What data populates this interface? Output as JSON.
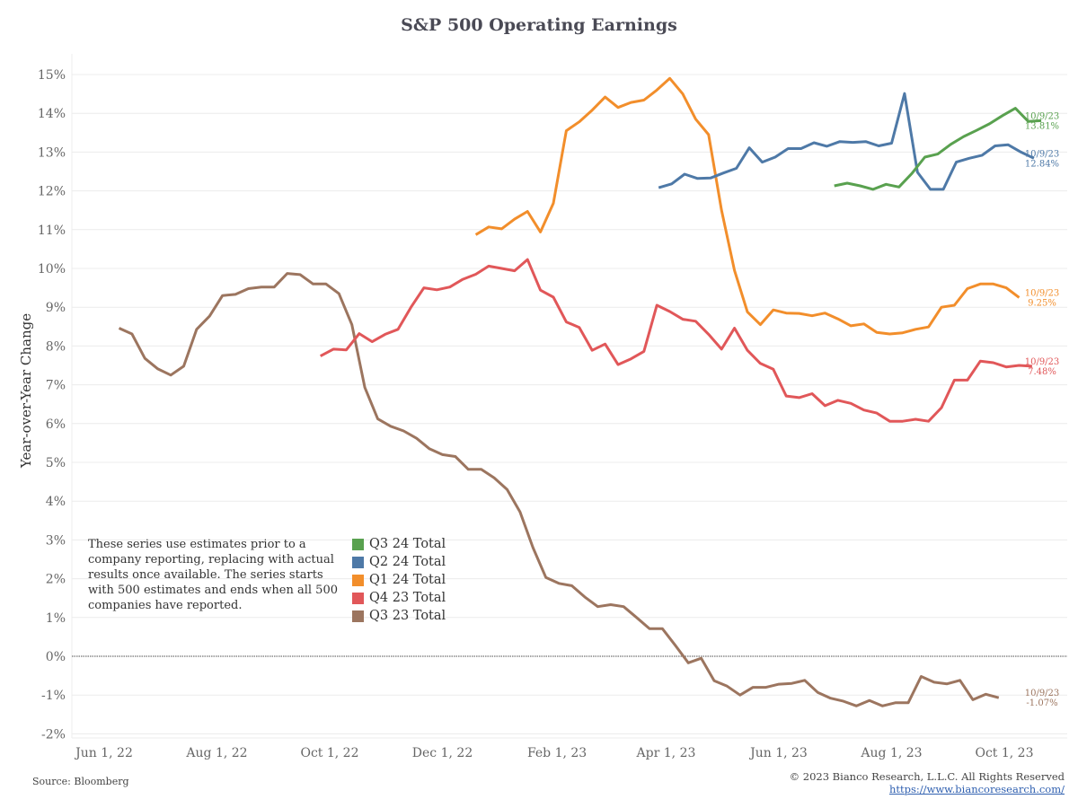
{
  "chart_data": {
    "type": "line",
    "title": "S&P 500 Operating Earnings",
    "xlabel": "",
    "ylabel": "Year-over-Year Change",
    "ylim": [
      -2.2,
      15.6
    ],
    "yticks": [
      15,
      14,
      13,
      12,
      11,
      10,
      9,
      8,
      7,
      6,
      5,
      4,
      3,
      2,
      1,
      0,
      -1,
      -2
    ],
    "ytick_labels": [
      "15%",
      "14%",
      "13%",
      "12%",
      "11%",
      "10%",
      "9%",
      "8%",
      "7%",
      "6%",
      "5%",
      "4%",
      "3%",
      "2%",
      "1%",
      "0%",
      "-1%",
      "-2%"
    ],
    "xlim": [
      "2022-05-20",
      "2023-10-31"
    ],
    "xticks": [
      "2022-06-01",
      "2022-08-01",
      "2022-10-01",
      "2022-12-01",
      "2023-02-01",
      "2023-04-01",
      "2023-06-01",
      "2023-08-01",
      "2023-10-01"
    ],
    "xtick_labels": [
      "Jun 1, 22",
      "Aug 1, 22",
      "Oct 1, 22",
      "Dec 1, 22",
      "Feb 1, 23",
      "Apr 1, 23",
      "Jun 1, 23",
      "Aug 1, 23",
      "Oct 1, 23"
    ],
    "grid": true,
    "zero_line": true,
    "legend_position": "bottom-left",
    "frequency": "weekly",
    "series": [
      {
        "name": "Q3 24 Total",
        "color": "#59a14f",
        "start": "2023-07-01",
        "values": [
          12.13,
          12.2,
          12.13,
          12.04,
          12.17,
          12.1,
          12.45,
          12.87,
          12.95,
          13.2,
          13.4,
          13.56,
          13.73,
          13.94,
          14.13,
          13.79,
          13.81
        ],
        "end_label": "10/9/23",
        "end_value_label": "13.81%"
      },
      {
        "name": "Q2 24 Total",
        "color": "#4e79a7",
        "start": "2023-03-28",
        "values": [
          12.08,
          12.18,
          12.43,
          12.32,
          12.33,
          12.46,
          12.58,
          13.11,
          12.74,
          12.87,
          13.09,
          13.09,
          13.24,
          13.15,
          13.27,
          13.25,
          13.27,
          13.16,
          13.23,
          14.51,
          12.48,
          12.04,
          12.04,
          12.74,
          12.84,
          12.92,
          13.16,
          13.19,
          13.0,
          12.84
        ],
        "end_label": "10/9/23",
        "end_value_label": "12.84%"
      },
      {
        "name": "Q1 24 Total",
        "color": "#f28e2b",
        "start": "2022-12-19",
        "values": [
          10.87,
          11.07,
          11.02,
          11.27,
          11.47,
          10.94,
          11.68,
          13.55,
          13.78,
          14.08,
          14.42,
          14.15,
          14.28,
          14.34,
          14.6,
          14.9,
          14.5,
          13.85,
          13.45,
          11.5,
          9.95,
          8.88,
          8.55,
          8.93,
          8.85,
          8.84,
          8.78,
          8.85,
          8.7,
          8.52,
          8.57,
          8.35,
          8.31,
          8.34,
          8.43,
          8.49,
          9.0,
          9.05,
          9.48,
          9.6,
          9.6,
          9.5,
          9.25
        ],
        "end_label": "10/9/23",
        "end_value_label": "9.25%"
      },
      {
        "name": "Q4 23 Total",
        "color": "#e15759",
        "start": "2022-09-26",
        "values": [
          7.74,
          7.92,
          7.9,
          8.32,
          8.11,
          8.3,
          8.43,
          9.0,
          9.5,
          9.45,
          9.52,
          9.72,
          9.85,
          10.06,
          10.0,
          9.94,
          10.23,
          9.44,
          9.26,
          8.62,
          8.48,
          7.89,
          8.05,
          7.52,
          7.67,
          7.86,
          9.05,
          8.89,
          8.69,
          8.64,
          8.3,
          7.92,
          8.46,
          7.89,
          7.55,
          7.4,
          6.71,
          6.67,
          6.77,
          6.46,
          6.6,
          6.52,
          6.35,
          6.27,
          6.06,
          6.06,
          6.11,
          6.06,
          6.41,
          7.12,
          7.12,
          7.61,
          7.57,
          7.46,
          7.5,
          7.48
        ],
        "end_label": "10/9/23",
        "end_value_label": "7.48%"
      },
      {
        "name": "Q3 23 Total",
        "color": "#9c755f",
        "start": "2022-06-09",
        "values": [
          8.46,
          8.31,
          7.68,
          7.41,
          7.25,
          7.48,
          8.43,
          8.77,
          9.3,
          9.33,
          9.48,
          9.52,
          9.52,
          9.87,
          9.84,
          9.6,
          9.6,
          9.35,
          8.55,
          6.93,
          6.12,
          5.93,
          5.81,
          5.62,
          5.35,
          5.2,
          5.15,
          4.82,
          4.82,
          4.6,
          4.3,
          3.72,
          2.8,
          2.03,
          1.88,
          1.82,
          1.53,
          1.28,
          1.33,
          1.28,
          1.0,
          0.71,
          0.71,
          0.28,
          -0.17,
          -0.05,
          -0.63,
          -0.77,
          -1.0,
          -0.8,
          -0.8,
          -0.72,
          -0.7,
          -0.62,
          -0.93,
          -1.08,
          -1.16,
          -1.28,
          -1.14,
          -1.28,
          -1.2,
          -1.2,
          -0.52,
          -0.67,
          -0.71,
          -0.62,
          -1.12,
          -0.98,
          -1.07
        ],
        "end_label": "10/9/23",
        "end_value_label": "-1.07%"
      }
    ]
  },
  "legend": {
    "items": [
      {
        "label": "Q3 24 Total",
        "color": "#59a14f"
      },
      {
        "label": "Q2 24 Total",
        "color": "#4e79a7"
      },
      {
        "label": "Q1 24 Total",
        "color": "#f28e2b"
      },
      {
        "label": "Q4 23 Total",
        "color": "#e15759"
      },
      {
        "label": "Q3 23 Total",
        "color": "#9c755f"
      }
    ]
  },
  "note": "These series use estimates prior to a company reporting, replacing with actual results once available. The series starts with 500 estimates and ends when all 500 companies have reported.",
  "footer": {
    "source": "Source: Bloomberg",
    "copyright": "© 2023 Bianco Research, L.L.C. All Rights Reserved",
    "link": "https://www.biancoresearch.com/"
  }
}
